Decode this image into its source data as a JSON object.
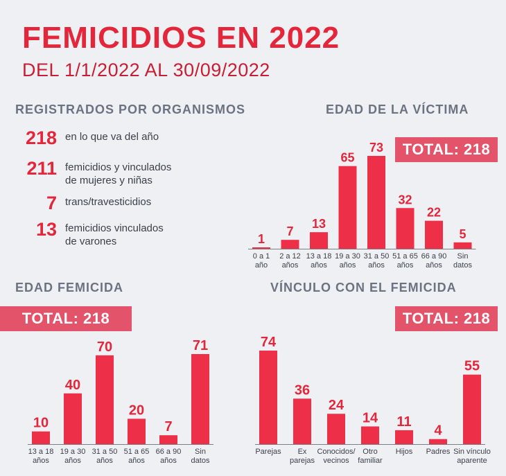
{
  "header": {
    "title": "FEMICIDIOS EN 2022",
    "subtitle": "DEL 1/1/2022 AL 30/09/2022"
  },
  "registrados": {
    "heading": "REGISTRADOS POR ORGANISMOS",
    "items": [
      {
        "value": "218",
        "text": "en lo que va del año"
      },
      {
        "value": "211",
        "text": "femicidios y vinculados\nde mujeres y niñas"
      },
      {
        "value": "7",
        "text": "trans/travesticidios"
      },
      {
        "value": "13",
        "text": "femicidios vinculados\nde varones"
      }
    ]
  },
  "colors": {
    "accent": "#e3263a",
    "bar": "#ee2f48",
    "total_badge": "#e3536a",
    "background": "#eef0f4",
    "heading_gray": "#6b7280"
  },
  "chart_data": [
    {
      "type": "bar",
      "title": "EDAD DE LA VÍCTIMA",
      "total_label": "TOTAL: 218",
      "categories": [
        "0 a 1\naño",
        "2 a 12\naños",
        "13 a 18\naños",
        "19 a 30\naños",
        "31 a 50\naños",
        "51 a 65\naños",
        "66 a 90\naños",
        "Sin\ndatos"
      ],
      "values": [
        1,
        7,
        13,
        65,
        73,
        32,
        22,
        5
      ],
      "ylim": [
        0,
        73
      ],
      "grid": false,
      "data_labels": true
    },
    {
      "type": "bar",
      "title": "EDAD FEMICIDA",
      "total_label": "TOTAL: 218",
      "categories": [
        "13 a 18\naños",
        "19 a 30\naños",
        "31 a 50\naños",
        "51 a 65\naños",
        "66 a 90\naños",
        "Sin\ndatos"
      ],
      "values": [
        10,
        40,
        70,
        20,
        7,
        71
      ],
      "ylim": [
        0,
        71
      ],
      "grid": false,
      "data_labels": true
    },
    {
      "type": "bar",
      "title": "VÍNCULO CON EL FEMICIDA",
      "total_label": "TOTAL: 218",
      "categories": [
        "Parejas",
        "Ex\nparejas",
        "Conocidos/\nvecinos",
        "Otro\nfamiliar",
        "Hijos",
        "Padres",
        "Sin vínculo\naparente"
      ],
      "values": [
        74,
        36,
        24,
        14,
        11,
        4,
        55
      ],
      "ylim": [
        0,
        74
      ],
      "grid": false,
      "data_labels": true
    }
  ]
}
